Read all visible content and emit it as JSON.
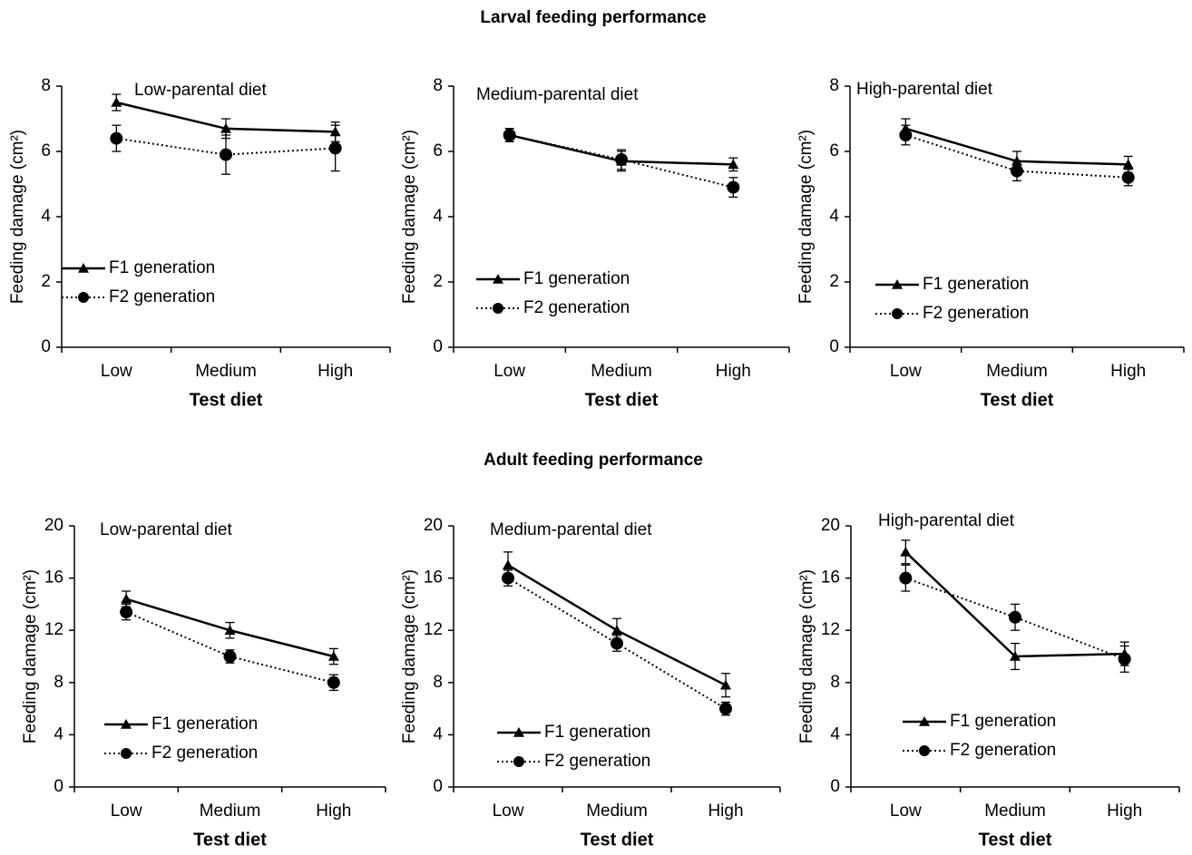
{
  "headings": [
    "Larval feeding performance",
    "Adult feeding performance"
  ],
  "chart_data": [
    {
      "type": "line",
      "title": "Low-parental diet",
      "xlabel": "Test diet",
      "ylabel": "Feeding damage (cm²)",
      "categories": [
        "Low",
        "Medium",
        "High"
      ],
      "ylim": [
        0,
        8
      ],
      "yticks": [
        0,
        2,
        4,
        6,
        8
      ],
      "legend": "lower left",
      "series": [
        {
          "name": "F1 generation",
          "color": "#000000",
          "linestyle": "solid",
          "marker": "triangle",
          "values": [
            7.5,
            6.7,
            6.6
          ],
          "errors": [
            0.25,
            0.3,
            0.3
          ]
        },
        {
          "name": "F2 generation",
          "color": "#000000",
          "linestyle": "dotted",
          "marker": "circle",
          "values": [
            6.4,
            5.9,
            6.1
          ],
          "errors": [
            0.4,
            0.6,
            0.7
          ]
        }
      ]
    },
    {
      "type": "line",
      "title": "Medium-parental diet",
      "xlabel": "Test diet",
      "ylabel": "Feeding damage (cm²)",
      "categories": [
        "Low",
        "Medium",
        "High"
      ],
      "ylim": [
        0,
        8
      ],
      "yticks": [
        0,
        2,
        4,
        6,
        8
      ],
      "legend": "lower left",
      "series": [
        {
          "name": "F1 generation",
          "color": "#000000",
          "linestyle": "solid",
          "marker": "triangle",
          "values": [
            6.5,
            5.7,
            5.6
          ],
          "errors": [
            0.2,
            0.3,
            0.2
          ]
        },
        {
          "name": "F2 generation",
          "color": "#000000",
          "linestyle": "dotted",
          "marker": "circle",
          "values": [
            6.5,
            5.75,
            4.9
          ],
          "errors": [
            0.2,
            0.3,
            0.3
          ]
        }
      ]
    },
    {
      "type": "line",
      "title": "High-parental diet",
      "xlabel": "Test diet",
      "ylabel": "Feeding damage (cm²)",
      "categories": [
        "Low",
        "Medium",
        "High"
      ],
      "ylim": [
        0,
        8
      ],
      "yticks": [
        0,
        2,
        4,
        6,
        8
      ],
      "legend": "lower left",
      "series": [
        {
          "name": "F1 generation",
          "color": "#000000",
          "linestyle": "solid",
          "marker": "triangle",
          "values": [
            6.7,
            5.7,
            5.6
          ],
          "errors": [
            0.3,
            0.3,
            0.25
          ]
        },
        {
          "name": "F2 generation",
          "color": "#000000",
          "linestyle": "dotted",
          "marker": "circle",
          "values": [
            6.5,
            5.4,
            5.2
          ],
          "errors": [
            0.3,
            0.3,
            0.25
          ]
        }
      ]
    },
    {
      "type": "line",
      "title": "Low-parental diet",
      "xlabel": "Test diet",
      "ylabel": "Feeding damage (cm²)",
      "categories": [
        "Low",
        "Medium",
        "High"
      ],
      "ylim": [
        0,
        20
      ],
      "yticks": [
        0,
        4,
        8,
        12,
        16,
        20
      ],
      "legend": "lower left",
      "series": [
        {
          "name": "F1 generation",
          "color": "#000000",
          "linestyle": "solid",
          "marker": "triangle",
          "values": [
            14.4,
            12,
            10
          ],
          "errors": [
            0.6,
            0.6,
            0.6
          ]
        },
        {
          "name": "F2 generation",
          "color": "#000000",
          "linestyle": "dotted",
          "marker": "circle",
          "values": [
            13.4,
            10,
            8
          ],
          "errors": [
            0.6,
            0.5,
            0.6
          ]
        }
      ]
    },
    {
      "type": "line",
      "title": "Medium-parental diet",
      "xlabel": "Test diet",
      "ylabel": "Feeding damage (cm²)",
      "categories": [
        "Low",
        "Medium",
        "High"
      ],
      "ylim": [
        0,
        20
      ],
      "yticks": [
        0,
        4,
        8,
        12,
        16,
        20
      ],
      "legend": "lower left",
      "series": [
        {
          "name": "F1 generation",
          "color": "#000000",
          "linestyle": "solid",
          "marker": "triangle",
          "values": [
            17,
            12,
            7.8
          ],
          "errors": [
            1,
            0.9,
            0.9
          ]
        },
        {
          "name": "F2 generation",
          "color": "#000000",
          "linestyle": "dotted",
          "marker": "circle",
          "values": [
            16,
            11,
            6
          ],
          "errors": [
            0.6,
            0.6,
            0.5
          ]
        }
      ]
    },
    {
      "type": "line",
      "title": "High-parental diet",
      "xlabel": "Test diet",
      "ylabel": "Feeding damage (cm²)",
      "categories": [
        "Low",
        "Medium",
        "High"
      ],
      "ylim": [
        0,
        20
      ],
      "yticks": [
        0,
        4,
        8,
        12,
        16,
        20
      ],
      "legend": "lower left",
      "series": [
        {
          "name": "F1 generation",
          "color": "#000000",
          "linestyle": "solid",
          "marker": "triangle",
          "values": [
            18,
            10,
            10.2
          ],
          "errors": [
            0.9,
            1,
            0.9
          ]
        },
        {
          "name": "F2 generation",
          "color": "#000000",
          "linestyle": "dotted",
          "marker": "circle",
          "values": [
            16,
            13,
            9.8
          ],
          "errors": [
            1,
            1,
            1
          ]
        }
      ]
    }
  ]
}
